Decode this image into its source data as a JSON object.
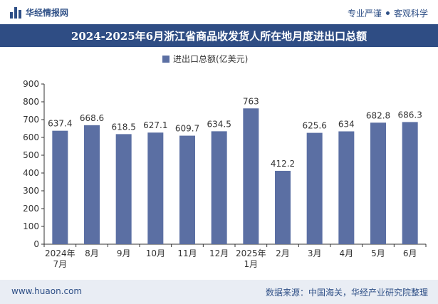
{
  "header": {
    "brand": "华经情报网",
    "tag_left": "专业严谨",
    "tag_right": "客观科学"
  },
  "footer": {
    "website": "www.huaon.com",
    "source": "数据来源：中国海关，华经产业研究院整理"
  },
  "colors": {
    "bar": "#5b6fa3",
    "title_bg": "#2f4d84",
    "brand": "#2e4f86"
  },
  "chart_data": {
    "type": "bar",
    "title": "2024-2025年6月浙江省商品收发货人所在地月度进出口总额",
    "legend": "进出口总额(亿美元)",
    "legend_position": "top-center",
    "categories": [
      "2024年\n7月",
      "8月",
      "9月",
      "10月",
      "11月",
      "12月",
      "2025年\n1月",
      "2月",
      "3月",
      "4月",
      "5月",
      "6月"
    ],
    "values": [
      637.4,
      668.6,
      618.5,
      627.1,
      609.7,
      634.5,
      763,
      412.2,
      625.6,
      634,
      682.8,
      686.3
    ],
    "labels": [
      "637.4",
      "668.6",
      "618.5",
      "627.1",
      "609.7",
      "634.5",
      "763",
      "412.2",
      "625.6",
      "634",
      "682.8",
      "686.3"
    ],
    "ylim": [
      0,
      900
    ],
    "yticks": [
      0,
      100,
      200,
      300,
      400,
      500,
      600,
      700,
      800,
      900
    ],
    "grid": false
  }
}
